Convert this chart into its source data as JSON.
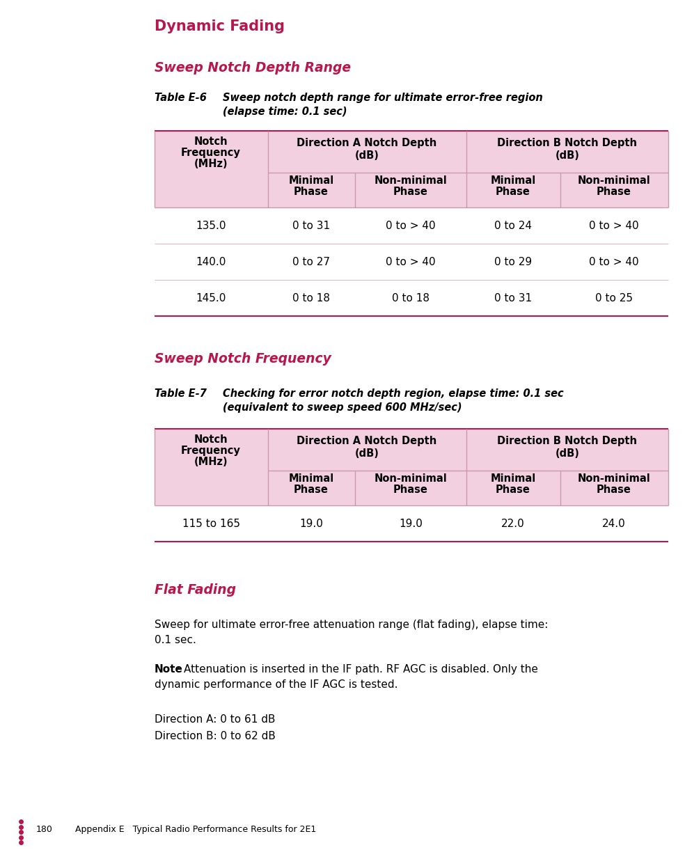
{
  "page_bg": "#ffffff",
  "heading1": "Dynamic Fading",
  "heading1_color": "#b5174e",
  "heading2a": "Sweep Notch Depth Range",
  "heading2a_color": "#b5174e",
  "heading2b": "Sweep Notch Frequency",
  "heading2b_color": "#b5174e",
  "heading2c": "Flat Fading",
  "heading2c_color": "#b5174e",
  "table1_label": "Table E-6",
  "table1_caption_line1": "Sweep notch depth range for ultimate error-free region",
  "table1_caption_line2": "(elapse time: 0.1 sec)",
  "table2_label": "Table E-7",
  "table2_caption_line1": "Checking for error notch depth region, elapse time: 0.1 sec",
  "table2_caption_line2": "(equivalent to sweep speed 600 MHz/sec)",
  "table_header_bg": "#f2d0df",
  "table_line_color": "#cc99aa",
  "table_line_color_bold": "#b5174e",
  "col_header_line1": "Notch",
  "col_header_line2": "Frequency",
  "col_header_line3": "(MHz)",
  "col_dir_a_line1": "Direction A Notch Depth",
  "col_dir_a_line2": "(dB)",
  "col_dir_b_line1": "Direction B Notch Depth",
  "col_dir_b_line2": "(dB)",
  "col_min_line1": "Minimal",
  "col_min_line2": "Phase",
  "col_nonmin_line1": "Non-minimal",
  "col_nonmin_line2": "Phase",
  "table1_rows": [
    [
      "135.0",
      "0 to 31",
      "0 to > 40",
      "0 to 24",
      "0 to > 40"
    ],
    [
      "140.0",
      "0 to 27",
      "0 to > 40",
      "0 to 29",
      "0 to > 40"
    ],
    [
      "145.0",
      "0 to 18",
      "0 to 18",
      "0 to 31",
      "0 to 25"
    ]
  ],
  "table2_rows": [
    [
      "115 to 165",
      "19.0",
      "19.0",
      "22.0",
      "24.0"
    ]
  ],
  "flat_text1": "Sweep for ultimate error-free attenuation range (flat fading), elapse time:",
  "flat_text2": "0.1 sec.",
  "note_bold": "Note",
  "note_rest_line1": ": Attenuation is inserted in the IF path. RF AGC is disabled. Only the",
  "note_rest_line2": "dynamic performance of the IF AGC is tested.",
  "dir_a_text": "Direction A: 0 to 61 dB",
  "dir_b_text": "Direction B: 0 to 62 dB",
  "footer_page": "180",
  "footer_text": "Appendix E   Typical Radio Performance Results for 2E1",
  "bullet_color": "#b5174e"
}
